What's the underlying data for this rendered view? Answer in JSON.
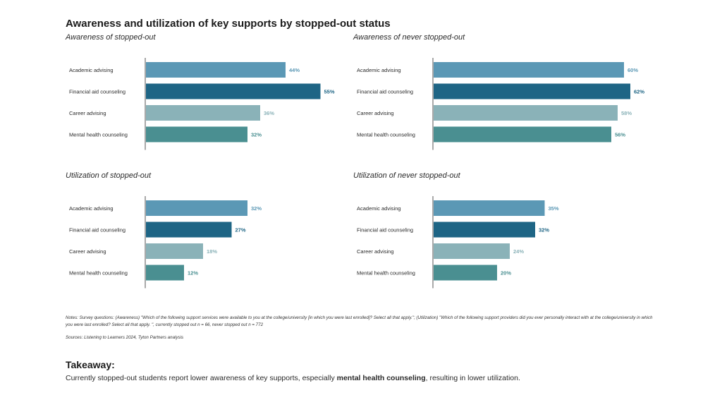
{
  "title": "Awareness and utilization of key supports by stopped-out status",
  "colors": {
    "Academic advising": "#5b98b5",
    "Financial aid counseling": "#1e6585",
    "Career advising": "#8ab2b8",
    "Mental health counseling": "#4a8f91"
  },
  "chart_data": [
    {
      "type": "bar",
      "orientation": "horizontal",
      "title": "Awareness of stopped-out",
      "categories": [
        "Academic advising",
        "Financial aid counseling",
        "Career advising",
        "Mental health counseling"
      ],
      "values": [
        44,
        55,
        36,
        32
      ],
      "labels": [
        "44%",
        "55%",
        "36%",
        "32%"
      ],
      "xlim": [
        0,
        100
      ]
    },
    {
      "type": "bar",
      "orientation": "horizontal",
      "title": "Awareness of never stopped-out",
      "categories": [
        "Academic advising",
        "Financial aid counseling",
        "Career advising",
        "Mental health counseling"
      ],
      "values": [
        60,
        62,
        58,
        56
      ],
      "labels": [
        "60%",
        "62%",
        "58%",
        "56%"
      ],
      "xlim": [
        0,
        100
      ]
    },
    {
      "type": "bar",
      "orientation": "horizontal",
      "title": "Utilization of stopped-out",
      "categories": [
        "Academic advising",
        "Financial aid counseling",
        "Career advising",
        "Mental health counseling"
      ],
      "values": [
        32,
        27,
        18,
        12
      ],
      "labels": [
        "32%",
        "27%",
        "18%",
        "12%"
      ],
      "xlim": [
        0,
        100
      ]
    },
    {
      "type": "bar",
      "orientation": "horizontal",
      "title": "Utilization of never stopped-out",
      "categories": [
        "Academic advising",
        "Financial aid counseling",
        "Career advising",
        "Mental health counseling"
      ],
      "values": [
        35,
        32,
        24,
        20
      ],
      "labels": [
        "35%",
        "32%",
        "24%",
        "20%"
      ],
      "xlim": [
        0,
        100
      ]
    }
  ],
  "notes": "Notes: Survey questions: (Awareness) \"Which of the following support services were available to you at the college/university [in which you were last enrolled]? Select all that apply.\"; (Utilization) \"Which of the following support providers did you ever personally interact with at the college/university in which you were last enrolled? Select all that apply. \", currently stopped out n = 66, never stopped out n = 772",
  "sources": "Sources: Listening to Learners 2024, Tyton Partners analysis",
  "takeaway": {
    "heading": "Takeaway:",
    "text_before": "Currently stopped-out students report lower awareness of key supports, especially ",
    "text_bold": "mental health counseling",
    "text_after": ", resulting in lower utilization."
  }
}
